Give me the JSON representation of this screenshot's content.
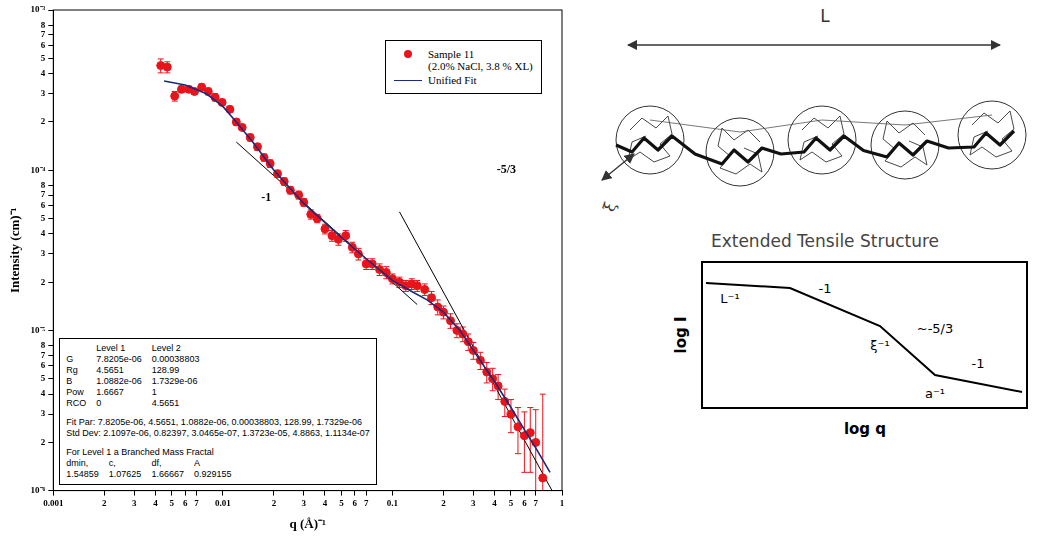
{
  "chart_data": {
    "type": "scatter",
    "x_label": "q (Å)⁻¹",
    "y_label": "Intensity (cm)⁻¹",
    "log": true,
    "grid": false,
    "legend": "upper right",
    "xlim": [
      0.001,
      1
    ],
    "xticks": [
      0.001,
      {
        "value": 0.002,
        "label": "2"
      },
      {
        "value": 0.003,
        "label": "3"
      },
      {
        "value": 0.004,
        "label": "4"
      },
      {
        "value": 0.005,
        "label": "5"
      },
      {
        "value": 0.006,
        "label": "6"
      },
      {
        "value": 0.007,
        "label": "7"
      },
      0.01,
      {
        "value": 0.02,
        "label": "2"
      },
      {
        "value": 0.03,
        "label": "3"
      },
      {
        "value": 0.04,
        "label": "4"
      },
      {
        "value": 0.05,
        "label": "5"
      },
      {
        "value": 0.06,
        "label": "6"
      },
      {
        "value": 0.07,
        "label": "7"
      },
      0.1,
      {
        "value": 0.2,
        "label": "2"
      },
      {
        "value": 0.3,
        "label": "3"
      },
      {
        "value": 0.4,
        "label": "4"
      },
      {
        "value": 0.5,
        "label": "5"
      },
      {
        "value": 0.6,
        "label": "6"
      },
      {
        "value": 0.7,
        "label": "7"
      },
      1
    ],
    "ylim": [
      1e-06,
      0.001
    ],
    "yticks": [
      {
        "value": 1e-06,
        "label": "10⁻⁶"
      },
      {
        "value": 2e-06,
        "label": "2"
      },
      {
        "value": 3e-06,
        "label": "3"
      },
      {
        "value": 4e-06,
        "label": "4"
      },
      {
        "value": 5e-06,
        "label": "5"
      },
      {
        "value": 6e-06,
        "label": "6"
      },
      {
        "value": 7e-06,
        "label": "7"
      },
      {
        "value": 8e-06,
        "label": "8"
      },
      {
        "value": 1e-05,
        "label": "10⁻⁵"
      },
      {
        "value": 2e-05,
        "label": "2"
      },
      {
        "value": 3e-05,
        "label": "3"
      },
      {
        "value": 4e-05,
        "label": "4"
      },
      {
        "value": 5e-05,
        "label": "5"
      },
      {
        "value": 6e-05,
        "label": "6"
      },
      {
        "value": 7e-05,
        "label": "7"
      },
      {
        "value": 8e-05,
        "label": "8"
      },
      {
        "value": 0.0001,
        "label": "10⁻⁴"
      },
      {
        "value": 0.0002,
        "label": "2"
      },
      {
        "value": 0.0003,
        "label": "3"
      },
      {
        "value": 0.0004,
        "label": "4"
      },
      {
        "value": 0.0005,
        "label": "5"
      },
      {
        "value": 0.0006,
        "label": "6"
      },
      {
        "value": 0.0007,
        "label": "7"
      },
      {
        "value": 0.0008,
        "label": "8"
      },
      {
        "value": 0.001,
        "label": "10⁻³"
      }
    ],
    "series": [
      {
        "name": "Sample 11 (2.0% NaCl, 3.8 % XL)",
        "type": "scatter",
        "color": "#e8141c",
        "marker": "circle",
        "x": [
          0.0043,
          0.0047,
          0.0052,
          0.0057,
          0.0063,
          0.0068,
          0.0075,
          0.0082,
          0.009,
          0.0099,
          0.011,
          0.012,
          0.013,
          0.0145,
          0.016,
          0.0175,
          0.019,
          0.021,
          0.023,
          0.025,
          0.028,
          0.03,
          0.033,
          0.036,
          0.04,
          0.044,
          0.048,
          0.053,
          0.058,
          0.063,
          0.07,
          0.076,
          0.084,
          0.092,
          0.1,
          0.11,
          0.12,
          0.13,
          0.14,
          0.155,
          0.17,
          0.185,
          0.2,
          0.22,
          0.24,
          0.26,
          0.28,
          0.3,
          0.33,
          0.36,
          0.39,
          0.42,
          0.46,
          0.5,
          0.55,
          0.6,
          0.65,
          0.7,
          0.77
        ],
        "values": [
          0.00045,
          0.00044,
          0.00029,
          0.00032,
          0.00032,
          0.00031,
          0.00033,
          0.00031,
          0.000285,
          0.000265,
          0.00024,
          0.0002,
          0.000185,
          0.00016,
          0.00014,
          0.00012,
          0.00011,
          9.5e-05,
          8.5e-05,
          7.5e-05,
          7e-05,
          6.3e-05,
          5.3e-05,
          5e-05,
          4.3e-05,
          3.9e-05,
          3.7e-05,
          3.9e-05,
          3.3e-05,
          3e-05,
          2.6e-05,
          2.6e-05,
          2.4e-05,
          2.3e-05,
          2.1e-05,
          2e-05,
          1.9e-05,
          1.95e-05,
          1.9e-05,
          1.8e-05,
          1.6e-05,
          1.4e-05,
          1.3e-05,
          1.15e-05,
          1e-05,
          9.5e-06,
          8.5e-06,
          7.5e-06,
          6.5e-06,
          5.5e-06,
          5e-06,
          4.5e-06,
          3.6e-06,
          3e-06,
          2.5e-06,
          2.2e-06,
          2.3e-06,
          2e-06,
          1.2e-06
        ],
        "errors": [
          4.5e-05,
          3.5e-05,
          2e-05,
          1.5e-05,
          1.2e-05,
          1.2e-05,
          1.5e-05,
          1.5e-05,
          1.5e-05,
          1.2e-05,
          1e-05,
          1e-05,
          8e-06,
          8e-06,
          7e-06,
          6e-06,
          6e-06,
          5e-06,
          4.5e-06,
          4e-06,
          4e-06,
          3.5e-06,
          3.5e-06,
          3e-06,
          3e-06,
          3e-06,
          3e-06,
          3e-06,
          2.5e-06,
          2.5e-06,
          2e-06,
          2e-06,
          2e-06,
          2e-06,
          1.5e-06,
          1.5e-06,
          1.5e-06,
          1.5e-06,
          1.5e-06,
          1.5e-06,
          1.5e-06,
          1.5e-06,
          1.2e-06,
          1.2e-06,
          1e-06,
          1e-06,
          1e-06,
          9e-07,
          8e-07,
          8e-07,
          8e-07,
          8e-07,
          7e-07,
          7e-07,
          8e-07,
          9e-07,
          1e-06,
          1.2e-06,
          2.8e-06
        ]
      },
      {
        "name": "Unified Fit",
        "type": "line",
        "color": "#1c2a7a",
        "line_style": "solid",
        "x": [
          0.0045,
          0.006,
          0.008,
          0.01,
          0.012,
          0.015,
          0.02,
          0.03,
          0.05,
          0.07,
          0.1,
          0.13,
          0.16,
          0.2,
          0.25,
          0.3,
          0.4,
          0.5,
          0.6,
          0.7,
          0.85
        ],
        "values": [
          0.00036,
          0.00034,
          0.0003,
          0.00025,
          0.0002,
          0.00015,
          0.0001,
          6.2e-05,
          3.8e-05,
          2.8e-05,
          2.05e-05,
          1.75e-05,
          1.55e-05,
          1.3e-05,
          1e-05,
          7.5e-06,
          4.8e-06,
          3.3e-06,
          2.4e-06,
          1.85e-06,
          1.3e-06
        ]
      }
    ],
    "reference_lines": [
      {
        "x": [
          0.012,
          0.14
        ],
        "values": [
          0.00015,
          1.45e-05
        ],
        "color": "#000000"
      },
      {
        "x": [
          0.11,
          0.95
        ],
        "values": [
          5.5e-05,
          8.5e-07
        ],
        "color": "#000000"
      }
    ],
    "annotations": [
      {
        "text": "-1",
        "x": 0.018,
        "y": 6.7e-05
      },
      {
        "text": "-5/3",
        "x": 0.47,
        "y": 0.0001
      }
    ],
    "text_box": {
      "columns": [
        "Level 1",
        "Level 2"
      ],
      "rows": [
        [
          "G",
          "7.8205e-06",
          "0.00038803"
        ],
        [
          "Rg",
          "4.5651",
          "128.99"
        ],
        [
          "B",
          "1.0882e-06",
          "1.7329e-06"
        ],
        [
          "Pow",
          "1.6667",
          "1"
        ],
        [
          "RCO",
          "0",
          "4.5651"
        ]
      ],
      "lines": [
        "Fit Par: 7.8205e-06, 4.5651, 1.0882e-06, 0.00038803, 128.99, 1.7329e-06",
        "Std Dev: 2.1097e-06, 0.82397, 3.0465e-07, 1.3723e-05, 4.8863, 1.1134e-07",
        "For Level 1 a Branched Mass Fractal"
      ],
      "fractal_columns": [
        "dmin,",
        "c,",
        "df,",
        "A"
      ],
      "fractal_values": [
        "1.54859",
        "1.07625",
        "1.66667",
        "0.929155"
      ]
    }
  },
  "diagram": {
    "length_label": "L",
    "width_label": "ξ",
    "caption": "Extended Tensile Structure",
    "schematic": {
      "y_label": "log I",
      "x_label": "log q",
      "labels": [
        "L⁻¹",
        "-1",
        "ξ⁻¹",
        "~-5/3",
        "a⁻¹",
        "-1"
      ]
    }
  }
}
